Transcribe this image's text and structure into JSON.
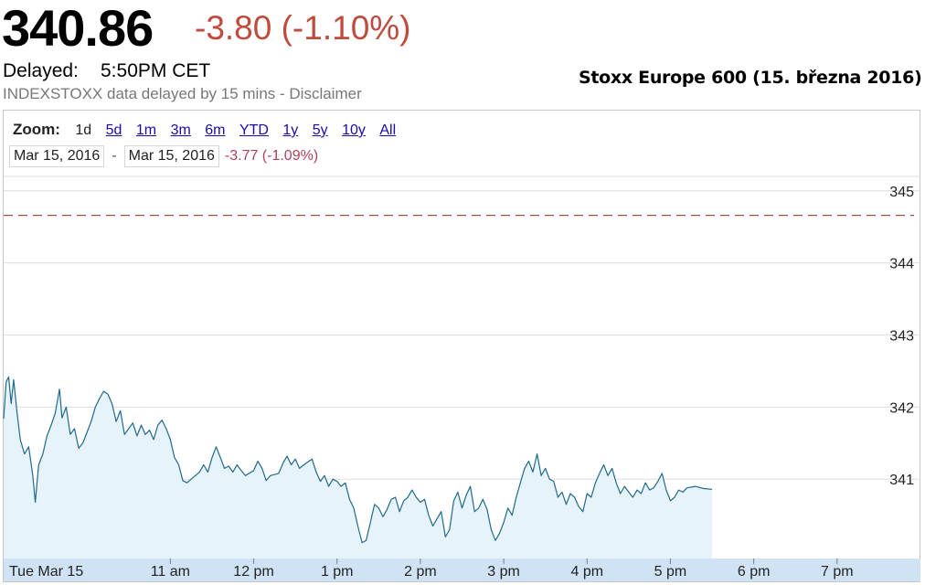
{
  "header": {
    "price": "340.86",
    "change": "-3.80 (-1.10%)",
    "delayed_label": "Delayed:",
    "delayed_time": "5:50PM CET",
    "disclaimer": "INDEXSTOXX data delayed by 15 mins - Disclaimer",
    "caption": "Stoxx Europe 600 (15. března 2016)"
  },
  "zoom": {
    "label": "Zoom:",
    "options": [
      "1d",
      "5d",
      "1m",
      "3m",
      "6m",
      "YTD",
      "1y",
      "5y",
      "10y",
      "All"
    ],
    "active": "1d"
  },
  "range": {
    "from": "Mar 15, 2016",
    "separator": "-",
    "to": "Mar 15, 2016",
    "change": "-3.77 (-1.09%)"
  },
  "colors": {
    "line": "#1f6a8a",
    "area": "#e6f3fb",
    "prev_close_line": "#b04b45",
    "x_axis_band": "#cfe3f5",
    "grid": "#dedede"
  },
  "chart_data": {
    "type": "area",
    "title": "",
    "xlabel": "",
    "ylabel": "",
    "x_tick_labels": [
      "Tue Mar 15",
      "11 am",
      "12 pm",
      "1 pm",
      "2 pm",
      "3 pm",
      "4 pm",
      "5 pm",
      "6 pm",
      "7 pm"
    ],
    "y_ticks": [
      341,
      342,
      343,
      344,
      345
    ],
    "ylim": [
      339.9,
      345.2
    ],
    "xlim_hours": [
      9.0,
      20.0
    ],
    "previous_close": 344.66,
    "grid": true,
    "series": [
      {
        "points": [
          [
            9.0,
            341.84
          ],
          [
            9.03,
            342.35
          ],
          [
            9.06,
            342.42
          ],
          [
            9.09,
            342.05
          ],
          [
            9.12,
            342.38
          ],
          [
            9.16,
            341.93
          ],
          [
            9.2,
            341.55
          ],
          [
            9.25,
            341.35
          ],
          [
            9.3,
            341.45
          ],
          [
            9.35,
            341.05
          ],
          [
            9.38,
            340.68
          ],
          [
            9.42,
            341.2
          ],
          [
            9.47,
            341.35
          ],
          [
            9.52,
            341.6
          ],
          [
            9.57,
            341.75
          ],
          [
            9.62,
            341.92
          ],
          [
            9.67,
            342.25
          ],
          [
            9.7,
            341.85
          ],
          [
            9.75,
            342.0
          ],
          [
            9.8,
            341.62
          ],
          [
            9.85,
            341.7
          ],
          [
            9.9,
            341.43
          ],
          [
            9.95,
            341.5
          ],
          [
            10.0,
            341.65
          ],
          [
            10.05,
            341.8
          ],
          [
            10.1,
            342.0
          ],
          [
            10.15,
            342.12
          ],
          [
            10.2,
            342.22
          ],
          [
            10.25,
            342.18
          ],
          [
            10.3,
            342.05
          ],
          [
            10.35,
            341.8
          ],
          [
            10.4,
            341.95
          ],
          [
            10.45,
            341.62
          ],
          [
            10.5,
            341.7
          ],
          [
            10.55,
            341.78
          ],
          [
            10.6,
            341.6
          ],
          [
            10.65,
            341.75
          ],
          [
            10.7,
            341.62
          ],
          [
            10.75,
            341.68
          ],
          [
            10.8,
            341.55
          ],
          [
            10.85,
            341.75
          ],
          [
            10.9,
            341.82
          ],
          [
            10.95,
            341.7
          ],
          [
            11.0,
            341.55
          ],
          [
            11.05,
            341.3
          ],
          [
            11.1,
            341.2
          ],
          [
            11.15,
            340.98
          ],
          [
            11.2,
            340.95
          ],
          [
            11.25,
            341.0
          ],
          [
            11.3,
            341.05
          ],
          [
            11.35,
            341.1
          ],
          [
            11.4,
            341.2
          ],
          [
            11.45,
            341.1
          ],
          [
            11.5,
            341.3
          ],
          [
            11.55,
            341.45
          ],
          [
            11.6,
            341.3
          ],
          [
            11.65,
            341.15
          ],
          [
            11.7,
            341.18
          ],
          [
            11.75,
            341.1
          ],
          [
            11.8,
            341.2
          ],
          [
            11.85,
            341.12
          ],
          [
            11.9,
            341.05
          ],
          [
            12.0,
            341.12
          ],
          [
            12.05,
            341.25
          ],
          [
            12.1,
            341.15
          ],
          [
            12.15,
            340.98
          ],
          [
            12.2,
            341.05
          ],
          [
            12.3,
            341.08
          ],
          [
            12.35,
            341.22
          ],
          [
            12.4,
            341.32
          ],
          [
            12.45,
            341.2
          ],
          [
            12.5,
            341.28
          ],
          [
            12.55,
            341.15
          ],
          [
            12.6,
            341.2
          ],
          [
            12.7,
            341.28
          ],
          [
            12.75,
            341.1
          ],
          [
            12.8,
            340.97
          ],
          [
            12.85,
            341.05
          ],
          [
            12.9,
            340.9
          ],
          [
            12.95,
            341.0
          ],
          [
            13.0,
            340.97
          ],
          [
            13.05,
            340.9
          ],
          [
            13.1,
            340.95
          ],
          [
            13.15,
            340.72
          ],
          [
            13.2,
            340.6
          ],
          [
            13.25,
            340.35
          ],
          [
            13.3,
            340.12
          ],
          [
            13.35,
            340.15
          ],
          [
            13.4,
            340.4
          ],
          [
            13.45,
            340.65
          ],
          [
            13.5,
            340.6
          ],
          [
            13.55,
            340.48
          ],
          [
            13.6,
            340.58
          ],
          [
            13.65,
            340.72
          ],
          [
            13.7,
            340.75
          ],
          [
            13.75,
            340.55
          ],
          [
            13.8,
            340.7
          ],
          [
            13.85,
            340.75
          ],
          [
            13.9,
            340.85
          ],
          [
            13.95,
            340.75
          ],
          [
            14.0,
            340.68
          ],
          [
            14.05,
            340.72
          ],
          [
            14.1,
            340.5
          ],
          [
            14.15,
            340.35
          ],
          [
            14.2,
            340.45
          ],
          [
            14.25,
            340.55
          ],
          [
            14.3,
            340.2
          ],
          [
            14.35,
            340.3
          ],
          [
            14.4,
            340.7
          ],
          [
            14.45,
            340.82
          ],
          [
            14.5,
            340.6
          ],
          [
            14.55,
            340.78
          ],
          [
            14.6,
            340.9
          ],
          [
            14.65,
            340.55
          ],
          [
            14.7,
            340.6
          ],
          [
            14.75,
            340.72
          ],
          [
            14.8,
            340.58
          ],
          [
            14.85,
            340.3
          ],
          [
            14.9,
            340.15
          ],
          [
            14.95,
            340.25
          ],
          [
            15.0,
            340.4
          ],
          [
            15.05,
            340.6
          ],
          [
            15.1,
            340.5
          ],
          [
            15.15,
            340.75
          ],
          [
            15.2,
            340.95
          ],
          [
            15.25,
            341.15
          ],
          [
            15.3,
            341.25
          ],
          [
            15.35,
            341.1
          ],
          [
            15.4,
            341.35
          ],
          [
            15.45,
            341.05
          ],
          [
            15.5,
            341.15
          ],
          [
            15.55,
            341.0
          ],
          [
            15.6,
            340.97
          ],
          [
            15.65,
            340.75
          ],
          [
            15.7,
            340.82
          ],
          [
            15.75,
            340.65
          ],
          [
            15.8,
            340.8
          ],
          [
            15.85,
            340.75
          ],
          [
            15.9,
            340.62
          ],
          [
            15.95,
            340.55
          ],
          [
            16.0,
            340.8
          ],
          [
            16.05,
            340.75
          ],
          [
            16.1,
            340.95
          ],
          [
            16.15,
            341.08
          ],
          [
            16.2,
            341.2
          ],
          [
            16.25,
            341.05
          ],
          [
            16.3,
            341.15
          ],
          [
            16.35,
            340.95
          ],
          [
            16.4,
            340.8
          ],
          [
            16.45,
            340.9
          ],
          [
            16.5,
            340.82
          ],
          [
            16.55,
            340.75
          ],
          [
            16.6,
            340.85
          ],
          [
            16.65,
            340.8
          ],
          [
            16.7,
            340.95
          ],
          [
            16.75,
            340.85
          ],
          [
            16.8,
            340.88
          ],
          [
            16.85,
            340.97
          ],
          [
            16.9,
            341.08
          ],
          [
            16.95,
            340.85
          ],
          [
            17.0,
            340.7
          ],
          [
            17.05,
            340.75
          ],
          [
            17.1,
            340.85
          ],
          [
            17.15,
            340.82
          ],
          [
            17.2,
            340.88
          ],
          [
            17.3,
            340.9
          ],
          [
            17.4,
            340.87
          ],
          [
            17.5,
            340.86
          ]
        ]
      }
    ]
  }
}
